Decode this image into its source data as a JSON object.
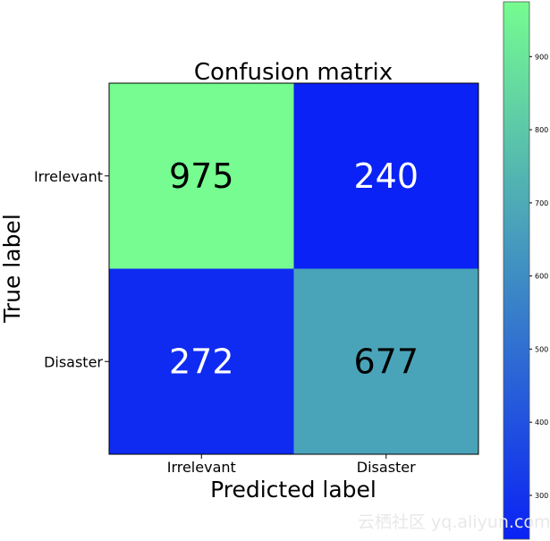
{
  "chart_data": {
    "type": "heatmap",
    "title": "Confusion matrix",
    "xlabel": "Predicted label",
    "ylabel": "True label",
    "x_categories": [
      "Irrelevant",
      "Disaster"
    ],
    "y_categories": [
      "Irrelevant",
      "Disaster"
    ],
    "values": [
      [
        975,
        240
      ],
      [
        272,
        677
      ]
    ],
    "colormap": {
      "low": "#0a22f5",
      "high": "#76fc90"
    },
    "colorbar": {
      "range": [
        240,
        975
      ],
      "ticks": [
        300,
        400,
        500,
        600,
        700,
        800,
        900
      ]
    },
    "text_colors": {
      "dark": "#000000",
      "light": "#ffffff"
    }
  },
  "watermark": "云栖社区 yq.aliyun.com"
}
